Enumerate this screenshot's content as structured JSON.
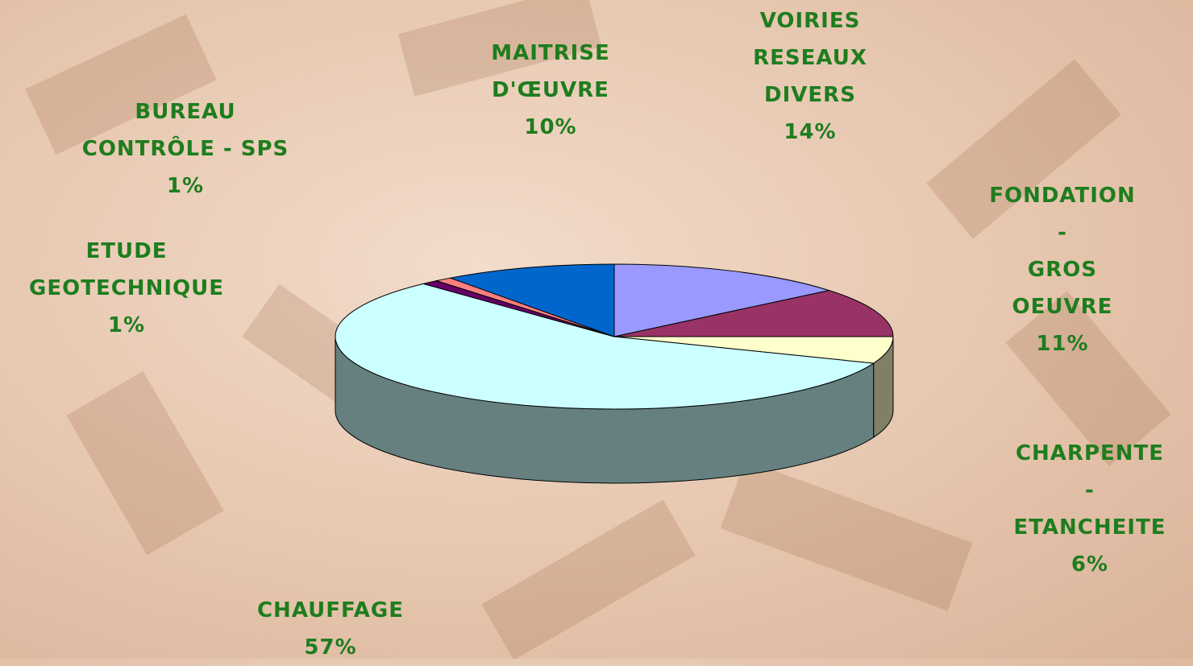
{
  "chart_data": {
    "type": "pie3d",
    "categories": [
      "VOIRIES\nRESEAUX\nDIVERS",
      "FONDATION -\nGROS OEUVRE",
      "CHARPENTE -\nETANCHEITE",
      "CHAUFFAGE",
      "ETUDE\nGEOTECHNIQUE",
      "BUREAU\nCONTRÔLE - SPS",
      "MAITRISE\nD'ŒUVRE"
    ],
    "values": [
      14,
      11,
      6,
      57,
      1,
      1,
      10
    ],
    "value_labels": [
      "14%",
      "11%",
      "6%",
      "57%",
      "1%",
      "1%",
      "10%"
    ],
    "colors": [
      "#9999ff",
      "#993366",
      "#ffffcc",
      "#ccffff",
      "#660066",
      "#ff8080",
      "#0066cc"
    ]
  }
}
